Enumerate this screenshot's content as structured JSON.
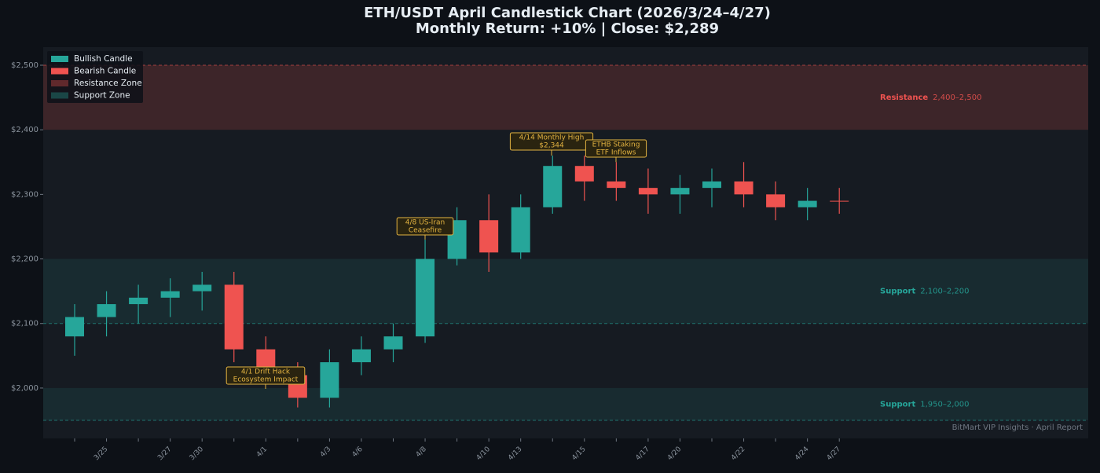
{
  "chart_data": {
    "type": "candlestick",
    "title": "ETH/USDT  April Candlestick Chart  (2026/3/24–4/27)",
    "subtitle": "Monthly Return: +10%  |  Close: $2,289",
    "categories": [
      null,
      "3/25",
      null,
      "3/27",
      "3/30",
      null,
      "4/1",
      null,
      "4/3",
      "4/6",
      null,
      "4/8",
      null,
      "4/10",
      "4/13",
      null,
      "4/15",
      null,
      "4/17",
      "4/20",
      null,
      "4/22",
      null,
      "4/24",
      "4/27"
    ],
    "open": [
      2080,
      2110,
      2130,
      2140,
      2150,
      2160,
      2060,
      2020,
      1985,
      2040,
      2060,
      2080,
      2200,
      2260,
      2210,
      2280,
      2344,
      2320,
      2310,
      2300,
      2310,
      2320,
      2300,
      2280,
      2290
    ],
    "high": [
      2130,
      2150,
      2160,
      2170,
      2180,
      2180,
      2080,
      2040,
      2060,
      2080,
      2100,
      2230,
      2280,
      2300,
      2300,
      2360,
      2360,
      2350,
      2340,
      2330,
      2340,
      2350,
      2320,
      2310,
      2310
    ],
    "low": [
      2050,
      2080,
      2100,
      2110,
      2120,
      2040,
      2010,
      1970,
      1970,
      2020,
      2040,
      2070,
      2190,
      2180,
      2200,
      2270,
      2290,
      2290,
      2270,
      2270,
      2280,
      2280,
      2260,
      2260,
      2270
    ],
    "close": [
      2110,
      2130,
      2140,
      2150,
      2160,
      2060,
      2030,
      1985,
      2040,
      2060,
      2080,
      2200,
      2260,
      2210,
      2280,
      2344,
      2320,
      2310,
      2300,
      2310,
      2320,
      2300,
      2280,
      2290,
      2289
    ],
    "bull_color": "#26a69a",
    "bear_color": "#ef5350",
    "ylim": [
      1922,
      2528
    ],
    "yticks": [
      {
        "value": 2000,
        "label": "$2,000"
      },
      {
        "value": 2100,
        "label": "$2,100"
      },
      {
        "value": 2200,
        "label": "$2,200"
      },
      {
        "value": 2300,
        "label": "$2,300"
      },
      {
        "value": 2400,
        "label": "$2,400"
      },
      {
        "value": 2500,
        "label": "$2,500"
      }
    ],
    "zones": [
      {
        "name": "Resistance",
        "range_label": "2,400–2,500",
        "lo": 2400,
        "hi": 2500,
        "color": "#ef5350"
      },
      {
        "name": "Support",
        "range_label": "2,100–2,200",
        "lo": 2100,
        "hi": 2200,
        "color": "#26a69a"
      },
      {
        "name": "Support",
        "range_label": "1,950–2,000",
        "lo": 1950,
        "hi": 2000,
        "color": "#26a69a"
      }
    ],
    "legend": {
      "position": "upper left",
      "entries": [
        "Bullish Candle",
        "Bearish Candle",
        "Resistance Zone",
        "Support Zone"
      ]
    },
    "annotations": [
      {
        "lines": [
          "4/1 Drift Hack",
          "Ecosystem Impact"
        ]
      },
      {
        "lines": [
          "4/8 US-Iran",
          "Ceasefire"
        ]
      },
      {
        "lines": [
          "4/14 Monthly High",
          "$2,344"
        ]
      },
      {
        "lines": [
          "ETHB Staking",
          "ETF Inflows"
        ]
      }
    ],
    "watermark": "BitMart VIP Insights · April Report"
  }
}
